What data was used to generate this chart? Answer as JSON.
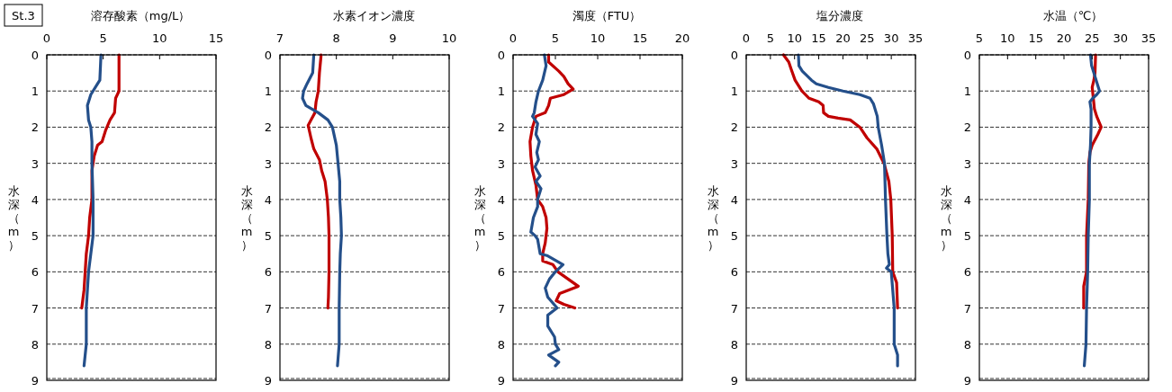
{
  "chart_data": [
    {
      "type": "line",
      "xlabel": "溶存酸素（mg/L）",
      "ylabel": "水深（m）",
      "annotations": [
        "St.3"
      ],
      "xlim": [
        0,
        15
      ],
      "xticks": [
        0,
        5,
        10,
        15
      ],
      "ylim": [
        9,
        0
      ],
      "yticks": [
        0,
        1,
        2,
        3,
        4,
        5,
        6,
        7,
        8,
        9
      ],
      "grid": "y",
      "series": [
        {
          "color": "#c00000",
          "x": [
            6.4,
            6.4,
            6.1,
            6.0,
            5.6,
            5.2,
            4.9,
            4.5,
            4.2,
            4.0,
            4.0,
            3.8,
            3.7,
            3.5,
            3.4,
            3.3,
            3.1
          ],
          "values": [
            0,
            1.0,
            1.2,
            1.6,
            1.8,
            2.1,
            2.4,
            2.5,
            2.8,
            3.2,
            4.0,
            4.5,
            5.0,
            5.5,
            6.0,
            6.5,
            7.0
          ]
        },
        {
          "color": "#244f8a",
          "x": [
            4.8,
            4.7,
            4.5,
            3.9,
            3.6,
            3.7,
            3.9,
            4.0,
            4.0,
            4.1,
            4.1,
            3.9,
            3.7,
            3.5,
            3.5,
            3.4,
            3.3
          ],
          "values": [
            0,
            0.7,
            0.8,
            1.1,
            1.4,
            1.8,
            2.0,
            2.4,
            3.0,
            4.0,
            5.0,
            5.5,
            6.0,
            7.0,
            8.0,
            8.3,
            8.6
          ]
        }
      ]
    },
    {
      "type": "line",
      "xlabel": "水素イオン濃度",
      "ylabel": "水深（m）",
      "xlim": [
        7,
        10
      ],
      "xticks": [
        7,
        8,
        9,
        10
      ],
      "ylim": [
        9,
        0
      ],
      "yticks": [
        0,
        1,
        2,
        3,
        4,
        5,
        6,
        7,
        8,
        9
      ],
      "grid": "y",
      "series": [
        {
          "color": "#c00000",
          "x": [
            7.73,
            7.7,
            7.68,
            7.64,
            7.62,
            7.55,
            7.5,
            7.55,
            7.6,
            7.7,
            7.74,
            7.8,
            7.84,
            7.86,
            7.87,
            7.87,
            7.86,
            7.85
          ],
          "values": [
            0,
            0.5,
            1.0,
            1.3,
            1.6,
            1.8,
            1.95,
            2.3,
            2.6,
            2.9,
            3.2,
            3.5,
            4.0,
            4.5,
            5.0,
            6.0,
            6.7,
            7.0
          ]
        },
        {
          "color": "#244f8a",
          "x": [
            7.6,
            7.58,
            7.48,
            7.42,
            7.4,
            7.46,
            7.68,
            7.85,
            7.93,
            8.0,
            8.03,
            8.06,
            8.06,
            8.08,
            8.09,
            8.07,
            8.06,
            8.05,
            8.05,
            8.02
          ],
          "values": [
            0,
            0.5,
            0.8,
            1.0,
            1.2,
            1.4,
            1.6,
            1.8,
            2.0,
            2.5,
            3.0,
            3.5,
            4.0,
            4.5,
            5.0,
            5.5,
            6.0,
            7.0,
            8.0,
            8.6
          ]
        }
      ]
    },
    {
      "type": "line",
      "xlabel": "濁度（FTU）",
      "ylabel": "水深（m）",
      "xlim": [
        0,
        20
      ],
      "xticks": [
        0,
        5,
        10,
        15,
        20
      ],
      "ylim": [
        9,
        0
      ],
      "yticks": [
        0,
        1,
        2,
        3,
        4,
        5,
        6,
        7,
        8,
        9
      ],
      "grid": "y",
      "series": [
        {
          "color": "#c00000",
          "x": [
            4.2,
            4.2,
            5.4,
            6.0,
            6.5,
            7.1,
            6.0,
            4.4,
            4.2,
            3.8,
            2.7,
            2.3,
            2.0,
            2.1,
            2.3,
            2.7,
            2.9,
            3.5,
            3.9,
            4.0,
            3.8,
            3.5,
            3.5,
            4.7,
            5.3,
            7.7,
            5.5,
            5.1,
            6.0,
            7.3
          ],
          "values": [
            0,
            0.2,
            0.45,
            0.6,
            0.8,
            0.95,
            1.1,
            1.2,
            1.4,
            1.6,
            1.7,
            2.0,
            2.4,
            2.8,
            3.2,
            3.6,
            4.0,
            4.2,
            4.5,
            4.8,
            5.2,
            5.5,
            5.7,
            5.8,
            6.0,
            6.4,
            6.6,
            6.8,
            6.9,
            7.0
          ]
        },
        {
          "color": "#244f8a",
          "x": [
            3.7,
            3.9,
            3.5,
            3.0,
            2.7,
            2.5,
            2.3,
            2.9,
            2.7,
            3.1,
            2.8,
            3.0,
            2.6,
            3.2,
            2.7,
            3.3,
            2.9,
            2.9,
            2.4,
            2.1,
            2.6,
            2.9,
            3.2,
            4.0,
            5.9,
            5.0,
            4.3,
            3.8,
            4.1,
            5.2,
            4.1,
            4.1,
            4.9,
            5.0,
            5.4,
            4.2,
            5.4,
            5.0
          ],
          "values": [
            0,
            0.3,
            0.7,
            1.0,
            1.3,
            1.6,
            1.7,
            1.9,
            2.2,
            2.4,
            2.7,
            2.9,
            3.1,
            3.35,
            3.5,
            3.7,
            4.0,
            4.2,
            4.5,
            4.9,
            5.0,
            5.1,
            5.5,
            5.55,
            5.8,
            6.0,
            6.2,
            6.45,
            6.7,
            7.0,
            7.2,
            7.5,
            7.8,
            8.0,
            8.15,
            8.3,
            8.5,
            8.6
          ]
        }
      ]
    },
    {
      "type": "line",
      "xlabel": "塩分濃度",
      "ylabel": "水深（m）",
      "xlim": [
        0,
        35
      ],
      "xticks": [
        0,
        5,
        10,
        15,
        20,
        25,
        30,
        35
      ],
      "ylim": [
        9,
        0
      ],
      "yticks": [
        0,
        1,
        2,
        3,
        4,
        5,
        6,
        7,
        8,
        9
      ],
      "grid": "y",
      "series": [
        {
          "color": "#c00000",
          "x": [
            7.7,
            8.8,
            9.3,
            10.1,
            11.5,
            13.0,
            15.0,
            15.9,
            16.0,
            17.0,
            19.0,
            21.5,
            23.5,
            25.0,
            27.0,
            28.5,
            29.5,
            29.9,
            30.2,
            30.3,
            31.1,
            31.3
          ],
          "values": [
            0,
            0.2,
            0.4,
            0.7,
            1.0,
            1.2,
            1.3,
            1.4,
            1.6,
            1.7,
            1.75,
            1.8,
            2.0,
            2.3,
            2.6,
            3.0,
            3.5,
            4.0,
            5.0,
            6.0,
            6.3,
            7.0
          ]
        },
        {
          "color": "#244f8a",
          "x": [
            10.8,
            10.9,
            11.6,
            13.5,
            14.5,
            17.0,
            20.0,
            23.5,
            25.6,
            26.3,
            27.1,
            27.3,
            28.0,
            28.6,
            28.7,
            28.8,
            29.1,
            29.3,
            29.6,
            29.0,
            30.0,
            30.6,
            30.6,
            31.3,
            31.3
          ],
          "values": [
            0,
            0.3,
            0.45,
            0.7,
            0.8,
            0.9,
            1.0,
            1.1,
            1.2,
            1.35,
            1.7,
            2.0,
            2.5,
            3.0,
            3.5,
            4.0,
            5.0,
            5.5,
            5.8,
            5.9,
            6.0,
            7.0,
            8.0,
            8.3,
            8.6
          ]
        }
      ]
    },
    {
      "type": "line",
      "xlabel": "水温（℃）",
      "ylabel": "水深（m）",
      "xlim": [
        5,
        35
      ],
      "xticks": [
        5,
        10,
        15,
        20,
        25,
        30,
        35
      ],
      "ylim": [
        9,
        0
      ],
      "yticks": [
        0,
        1,
        2,
        3,
        4,
        5,
        6,
        7,
        8,
        9
      ],
      "grid": "y",
      "series": [
        {
          "color": "#c00000",
          "x": [
            25.6,
            25.5,
            25.3,
            25.0,
            25.2,
            25.4,
            25.8,
            26.6,
            26.0,
            25.0,
            24.6,
            24.4,
            24.3,
            24.0,
            24.0,
            23.5,
            23.5
          ],
          "values": [
            0,
            0.5,
            0.7,
            0.9,
            1.2,
            1.5,
            1.7,
            2.0,
            2.2,
            2.5,
            2.7,
            3.0,
            4.0,
            5.0,
            6.0,
            6.4,
            7.0
          ]
        },
        {
          "color": "#244f8a",
          "x": [
            24.7,
            24.9,
            25.5,
            26.0,
            26.3,
            25.8,
            25.1,
            24.6,
            24.8,
            24.8,
            24.7,
            24.5,
            24.5,
            24.3,
            24.2,
            24.0,
            23.9,
            23.6
          ],
          "values": [
            0,
            0.3,
            0.6,
            0.85,
            1.0,
            1.1,
            1.2,
            1.3,
            1.5,
            2.0,
            2.5,
            3.0,
            4.0,
            5.0,
            6.0,
            7.0,
            8.0,
            8.6
          ]
        }
      ]
    }
  ]
}
